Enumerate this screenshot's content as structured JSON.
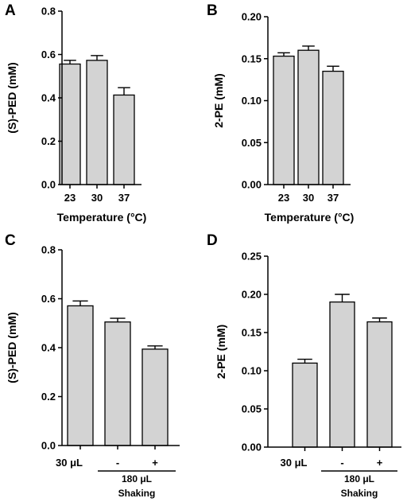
{
  "colors": {
    "bar_fill": "#d3d3d3",
    "stroke": "#000000",
    "background": "#ffffff"
  },
  "chart_data": [
    {
      "panel": "A",
      "type": "bar",
      "categories": [
        "23",
        "30",
        "37"
      ],
      "values": [
        0.556,
        0.573,
        0.413
      ],
      "errors": [
        0.017,
        0.022,
        0.034
      ],
      "xlabel": "Temperature (°C)",
      "ylabel": "(S)-PED (mM)",
      "ylim": [
        0,
        0.8
      ],
      "yticks": [
        "0.0",
        "0.2",
        "0.4",
        "0.6",
        "0.8"
      ],
      "grid": false
    },
    {
      "panel": "B",
      "type": "bar",
      "categories": [
        "23",
        "30",
        "37"
      ],
      "values": [
        0.153,
        0.16,
        0.135
      ],
      "errors": [
        0.004,
        0.005,
        0.006
      ],
      "xlabel": "Temperature (°C)",
      "ylabel": "2-PE (mM)",
      "ylim": [
        0,
        0.2
      ],
      "yticks": [
        "0.00",
        "0.05",
        "0.10",
        "0.15",
        "0.20"
      ],
      "grid": false
    },
    {
      "panel": "C",
      "type": "bar",
      "categories": [
        "30 μL",
        "-",
        "+"
      ],
      "values": [
        0.571,
        0.505,
        0.394
      ],
      "errors": [
        0.02,
        0.015,
        0.013
      ],
      "xlabel": "",
      "group_label": "180 μL",
      "group_sublabel": "Shaking",
      "ylabel": "(S)-PED (mM)",
      "ylim": [
        0,
        0.8
      ],
      "yticks": [
        "0.0",
        "0.2",
        "0.4",
        "0.6",
        "0.8"
      ],
      "grid": false
    },
    {
      "panel": "D",
      "type": "bar",
      "categories": [
        "30 μL",
        "-",
        "+"
      ],
      "values": [
        0.11,
        0.19,
        0.164
      ],
      "errors": [
        0.005,
        0.01,
        0.005
      ],
      "xlabel": "",
      "group_label": "180 μL",
      "group_sublabel": "Shaking",
      "ylabel": "2-PE (mM)",
      "ylim": [
        0,
        0.25
      ],
      "yticks": [
        "0.00",
        "0.05",
        "0.10",
        "0.15",
        "0.20",
        "0.25"
      ],
      "grid": false
    }
  ]
}
